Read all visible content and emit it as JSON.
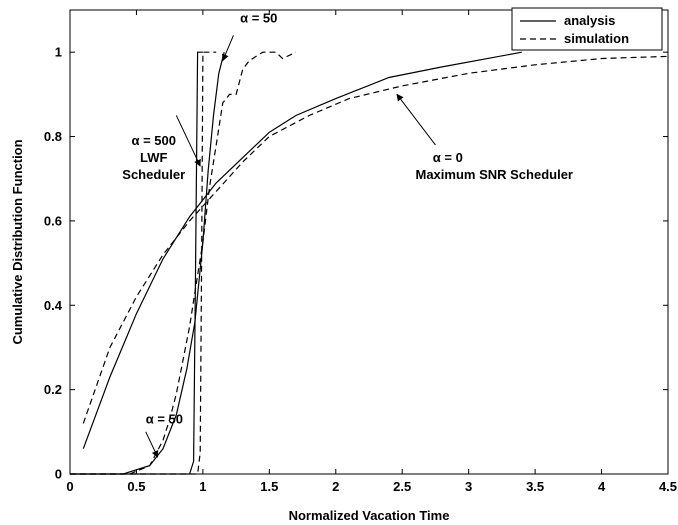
{
  "chart_data": {
    "type": "line",
    "title": "",
    "xlabel": "Normalized Vacation Time",
    "ylabel": "Cumulative Distribution Function",
    "xlim": [
      0,
      4.5
    ],
    "ylim": [
      0,
      1.1
    ],
    "xticks": [
      0,
      0.5,
      1,
      1.5,
      2,
      2.5,
      3,
      3.5,
      4,
      4.5
    ],
    "yticks": [
      0,
      0.2,
      0.4,
      0.6,
      0.8,
      1
    ],
    "xtick_labels": [
      "0",
      "0.5",
      "1",
      "1.5",
      "2",
      "2.5",
      "3",
      "3.5",
      "4",
      "4.5"
    ],
    "ytick_labels": [
      "0",
      "0.2",
      "0.4",
      "0.6",
      "0.8",
      "1"
    ],
    "grid": false,
    "legend": {
      "placement": "top-right",
      "entries": [
        {
          "label": "analysis",
          "style": "solid"
        },
        {
          "label": "simulation",
          "style": "dashed"
        }
      ]
    },
    "series": [
      {
        "key": "a0_analysis",
        "style": "solid",
        "x": [
          0.1,
          0.3,
          0.5,
          0.7,
          0.9,
          1.1,
          1.3,
          1.5,
          1.7,
          2.0,
          2.4,
          2.8,
          3.4
        ],
        "y": [
          0.06,
          0.23,
          0.38,
          0.51,
          0.61,
          0.69,
          0.75,
          0.81,
          0.85,
          0.89,
          0.94,
          0.965,
          1.0
        ]
      },
      {
        "key": "a0_simulation",
        "style": "dashed",
        "x": [
          0.1,
          0.3,
          0.5,
          0.7,
          0.9,
          1.1,
          1.3,
          1.5,
          1.8,
          2.1,
          2.5,
          3.0,
          3.5,
          4.0,
          4.5
        ],
        "y": [
          0.12,
          0.3,
          0.42,
          0.52,
          0.6,
          0.67,
          0.74,
          0.8,
          0.85,
          0.89,
          0.92,
          0.95,
          0.97,
          0.985,
          0.99
        ]
      },
      {
        "key": "a500_analysis",
        "style": "solid",
        "x": [
          0.0,
          0.9,
          0.93,
          0.945,
          0.96,
          1.0
        ],
        "y": [
          0.0,
          0.0,
          0.03,
          0.5,
          1.0,
          1.0
        ]
      },
      {
        "key": "a500_simulation",
        "style": "dashed",
        "x": [
          0.0,
          0.96,
          0.98,
          0.99,
          1.0,
          1.1
        ],
        "y": [
          0.0,
          0.0,
          0.05,
          0.5,
          1.0,
          1.0
        ]
      },
      {
        "key": "a50_analysis",
        "style": "solid",
        "x": [
          0.0,
          0.4,
          0.6,
          0.7,
          0.8,
          0.88,
          0.94,
          1.0,
          1.04,
          1.08,
          1.12,
          1.16
        ],
        "y": [
          0.0,
          0.0,
          0.02,
          0.06,
          0.14,
          0.25,
          0.36,
          0.55,
          0.72,
          0.85,
          0.95,
          1.0
        ]
      },
      {
        "key": "a50_simulation",
        "style": "dashed",
        "x": [
          0.0,
          0.45,
          0.6,
          0.65,
          0.7,
          0.75,
          0.8,
          0.85,
          0.9,
          0.95,
          1.0,
          1.05,
          1.1,
          1.15,
          1.2,
          1.25,
          1.3,
          1.35,
          1.4,
          1.45,
          1.5,
          1.55,
          1.6,
          1.7
        ],
        "y": [
          0.0,
          0.0,
          0.02,
          0.05,
          0.08,
          0.13,
          0.19,
          0.27,
          0.35,
          0.45,
          0.55,
          0.68,
          0.78,
          0.88,
          0.9,
          0.9,
          0.96,
          0.98,
          0.99,
          1.0,
          1.0,
          1.0,
          0.985,
          1.0
        ]
      }
    ],
    "annotations": [
      {
        "id": "a50_top",
        "text": "α = 50",
        "x": 1.28,
        "y": 1.07,
        "arrow_to": [
          1.15,
          0.98
        ]
      },
      {
        "id": "a500",
        "lines": [
          "α = 500",
          "LWF",
          "Scheduler"
        ],
        "x": 0.7,
        "y": 0.78,
        "arrow_from": [
          0.8,
          0.85
        ],
        "arrow_to": [
          0.98,
          0.73
        ]
      },
      {
        "id": "a0",
        "lines": [
          "α = 0",
          "Maximum SNR Scheduler"
        ],
        "x": 2.6,
        "y": 0.74,
        "arrow_from": [
          2.75,
          0.78
        ],
        "arrow_to": [
          2.46,
          0.9
        ]
      },
      {
        "id": "a50_bottom",
        "text": "α = 50",
        "x": 0.57,
        "y": 0.12,
        "arrow_from": [
          0.57,
          0.1
        ],
        "arrow_to": [
          0.66,
          0.04
        ]
      }
    ]
  }
}
